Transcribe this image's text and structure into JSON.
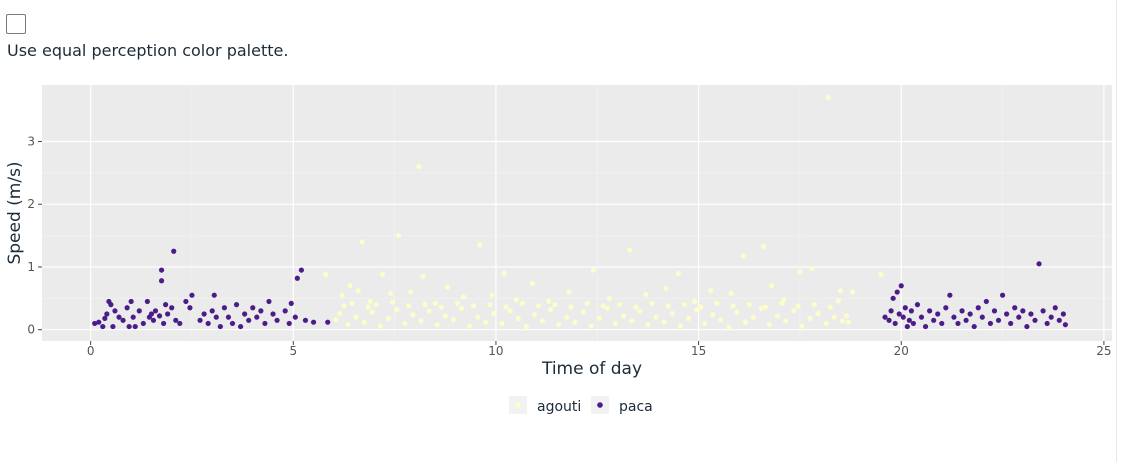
{
  "control": {
    "checked": false,
    "label": "Use equal perception color palette."
  },
  "chart_data": {
    "type": "scatter",
    "title": "",
    "xlabel": "Time of day",
    "ylabel": "Speed (m/s)",
    "xlim": [
      -1.2,
      25.2
    ],
    "ylim": [
      -0.18,
      3.9
    ],
    "xticks": [
      0,
      5,
      10,
      15,
      20,
      25
    ],
    "yticks": [
      0,
      1,
      2,
      3
    ],
    "grid": true,
    "legend": "bottom",
    "colors": {
      "agouti": "#fdfccc",
      "paca": "#4b1c8a",
      "panel": "#ebebeb",
      "grid": "#ffffff"
    },
    "series": [
      {
        "name": "agouti",
        "points": [
          [
            5.8,
            0.88
          ],
          [
            6.2,
            0.55
          ],
          [
            6.4,
            0.7
          ],
          [
            6.6,
            0.62
          ],
          [
            6.7,
            1.4
          ],
          [
            6.9,
            0.45
          ],
          [
            7.2,
            0.88
          ],
          [
            7.4,
            0.58
          ],
          [
            7.6,
            1.5
          ],
          [
            7.9,
            0.6
          ],
          [
            8.1,
            2.6
          ],
          [
            8.2,
            0.85
          ],
          [
            8.5,
            0.42
          ],
          [
            8.8,
            0.68
          ],
          [
            9.2,
            0.52
          ],
          [
            9.6,
            1.35
          ],
          [
            9.9,
            0.55
          ],
          [
            10.2,
            0.9
          ],
          [
            10.5,
            0.48
          ],
          [
            10.9,
            0.74
          ],
          [
            11.3,
            0.45
          ],
          [
            11.8,
            0.6
          ],
          [
            12.4,
            0.95
          ],
          [
            12.8,
            0.5
          ],
          [
            13.3,
            1.27
          ],
          [
            13.7,
            0.56
          ],
          [
            14.2,
            0.66
          ],
          [
            14.5,
            0.9
          ],
          [
            14.9,
            0.45
          ],
          [
            15.3,
            0.62
          ],
          [
            15.8,
            0.58
          ],
          [
            16.1,
            1.18
          ],
          [
            16.6,
            1.33
          ],
          [
            16.8,
            0.7
          ],
          [
            17.1,
            0.48
          ],
          [
            17.5,
            0.92
          ],
          [
            17.8,
            0.98
          ],
          [
            18.2,
            3.7
          ],
          [
            18.5,
            0.62
          ],
          [
            18.8,
            0.6
          ],
          [
            19.5,
            0.88
          ],
          [
            6.35,
            0.08
          ],
          [
            6.55,
            0.2
          ],
          [
            6.75,
            0.12
          ],
          [
            6.95,
            0.28
          ],
          [
            7.15,
            0.06
          ],
          [
            7.35,
            0.18
          ],
          [
            7.55,
            0.32
          ],
          [
            7.75,
            0.1
          ],
          [
            7.95,
            0.24
          ],
          [
            8.15,
            0.14
          ],
          [
            8.35,
            0.3
          ],
          [
            8.55,
            0.08
          ],
          [
            8.75,
            0.22
          ],
          [
            8.95,
            0.16
          ],
          [
            9.15,
            0.34
          ],
          [
            9.35,
            0.06
          ],
          [
            9.55,
            0.2
          ],
          [
            9.75,
            0.12
          ],
          [
            9.95,
            0.26
          ],
          [
            10.15,
            0.1
          ],
          [
            10.35,
            0.3
          ],
          [
            10.55,
            0.18
          ],
          [
            10.75,
            0.05
          ],
          [
            10.95,
            0.24
          ],
          [
            11.15,
            0.14
          ],
          [
            11.35,
            0.32
          ],
          [
            11.55,
            0.08
          ],
          [
            11.75,
            0.2
          ],
          [
            11.95,
            0.12
          ],
          [
            12.15,
            0.28
          ],
          [
            12.35,
            0.06
          ],
          [
            12.55,
            0.18
          ],
          [
            12.75,
            0.34
          ],
          [
            12.95,
            0.1
          ],
          [
            13.15,
            0.22
          ],
          [
            13.35,
            0.14
          ],
          [
            13.55,
            0.3
          ],
          [
            13.75,
            0.08
          ],
          [
            13.95,
            0.2
          ],
          [
            14.15,
            0.12
          ],
          [
            14.35,
            0.26
          ],
          [
            14.55,
            0.06
          ],
          [
            14.75,
            0.18
          ],
          [
            14.95,
            0.32
          ],
          [
            15.15,
            0.1
          ],
          [
            15.35,
            0.24
          ],
          [
            15.55,
            0.16
          ],
          [
            15.75,
            0.04
          ],
          [
            15.95,
            0.28
          ],
          [
            16.15,
            0.12
          ],
          [
            16.35,
            0.2
          ],
          [
            16.55,
            0.34
          ],
          [
            16.75,
            0.08
          ],
          [
            16.95,
            0.22
          ],
          [
            17.15,
            0.14
          ],
          [
            17.35,
            0.3
          ],
          [
            17.55,
            0.06
          ],
          [
            17.75,
            0.18
          ],
          [
            17.95,
            0.26
          ],
          [
            18.15,
            0.1
          ],
          [
            18.35,
            0.2
          ],
          [
            18.55,
            0.14
          ],
          [
            6.25,
            0.38
          ],
          [
            6.45,
            0.42
          ],
          [
            6.85,
            0.36
          ],
          [
            7.05,
            0.4
          ],
          [
            7.45,
            0.44
          ],
          [
            7.85,
            0.38
          ],
          [
            8.25,
            0.4
          ],
          [
            8.65,
            0.36
          ],
          [
            9.05,
            0.42
          ],
          [
            9.45,
            0.38
          ],
          [
            9.85,
            0.4
          ],
          [
            10.25,
            0.36
          ],
          [
            10.65,
            0.42
          ],
          [
            11.05,
            0.38
          ],
          [
            11.45,
            0.4
          ],
          [
            11.85,
            0.36
          ],
          [
            12.25,
            0.42
          ],
          [
            12.65,
            0.38
          ],
          [
            13.05,
            0.4
          ],
          [
            13.45,
            0.36
          ],
          [
            13.85,
            0.42
          ],
          [
            14.25,
            0.38
          ],
          [
            14.65,
            0.4
          ],
          [
            15.05,
            0.36
          ],
          [
            15.45,
            0.42
          ],
          [
            15.85,
            0.38
          ],
          [
            16.25,
            0.4
          ],
          [
            16.65,
            0.36
          ],
          [
            17.05,
            0.42
          ],
          [
            17.45,
            0.38
          ],
          [
            17.85,
            0.4
          ],
          [
            18.25,
            0.36
          ],
          [
            18.45,
            0.46
          ],
          [
            6.05,
            0.16
          ],
          [
            6.15,
            0.26
          ],
          [
            18.65,
            0.22
          ],
          [
            18.7,
            0.12
          ]
        ]
      },
      {
        "name": "paca",
        "points": [
          [
            0.1,
            0.1
          ],
          [
            0.2,
            0.12
          ],
          [
            0.3,
            0.05
          ],
          [
            0.35,
            0.18
          ],
          [
            0.4,
            0.25
          ],
          [
            0.45,
            0.45
          ],
          [
            0.5,
            0.4
          ],
          [
            0.55,
            0.05
          ],
          [
            0.6,
            0.3
          ],
          [
            0.7,
            0.2
          ],
          [
            0.8,
            0.15
          ],
          [
            0.9,
            0.35
          ],
          [
            0.95,
            0.05
          ],
          [
            1.0,
            0.45
          ],
          [
            1.05,
            0.2
          ],
          [
            1.1,
            0.05
          ],
          [
            1.2,
            0.3
          ],
          [
            1.3,
            0.1
          ],
          [
            1.4,
            0.45
          ],
          [
            1.45,
            0.2
          ],
          [
            1.5,
            0.25
          ],
          [
            1.55,
            0.15
          ],
          [
            1.6,
            0.3
          ],
          [
            1.7,
            0.22
          ],
          [
            1.75,
            0.78
          ],
          [
            1.75,
            0.95
          ],
          [
            1.8,
            0.1
          ],
          [
            1.85,
            0.4
          ],
          [
            1.9,
            0.25
          ],
          [
            2.0,
            0.35
          ],
          [
            2.05,
            1.25
          ],
          [
            2.1,
            0.15
          ],
          [
            2.2,
            0.1
          ],
          [
            2.35,
            0.45
          ],
          [
            2.45,
            0.35
          ],
          [
            2.5,
            0.55
          ],
          [
            2.7,
            0.15
          ],
          [
            2.8,
            0.25
          ],
          [
            2.9,
            0.1
          ],
          [
            3.0,
            0.3
          ],
          [
            3.05,
            0.55
          ],
          [
            3.1,
            0.2
          ],
          [
            3.2,
            0.05
          ],
          [
            3.3,
            0.35
          ],
          [
            3.4,
            0.2
          ],
          [
            3.5,
            0.1
          ],
          [
            3.6,
            0.4
          ],
          [
            3.7,
            0.05
          ],
          [
            3.8,
            0.25
          ],
          [
            3.9,
            0.15
          ],
          [
            4.0,
            0.35
          ],
          [
            4.1,
            0.2
          ],
          [
            4.2,
            0.3
          ],
          [
            4.3,
            0.1
          ],
          [
            4.4,
            0.45
          ],
          [
            4.5,
            0.25
          ],
          [
            4.6,
            0.15
          ],
          [
            4.8,
            0.3
          ],
          [
            4.9,
            0.1
          ],
          [
            4.95,
            0.42
          ],
          [
            5.05,
            0.2
          ],
          [
            5.1,
            0.82
          ],
          [
            5.2,
            0.95
          ],
          [
            5.3,
            0.15
          ],
          [
            5.5,
            0.12
          ],
          [
            5.85,
            0.12
          ],
          [
            19.6,
            0.2
          ],
          [
            19.7,
            0.15
          ],
          [
            19.75,
            0.3
          ],
          [
            19.8,
            0.5
          ],
          [
            19.85,
            0.1
          ],
          [
            19.9,
            0.6
          ],
          [
            19.95,
            0.25
          ],
          [
            20.0,
            0.7
          ],
          [
            20.05,
            0.2
          ],
          [
            20.1,
            0.35
          ],
          [
            20.15,
            0.05
          ],
          [
            20.2,
            0.15
          ],
          [
            20.25,
            0.3
          ],
          [
            20.3,
            0.1
          ],
          [
            20.4,
            0.4
          ],
          [
            20.5,
            0.2
          ],
          [
            20.6,
            0.05
          ],
          [
            20.7,
            0.3
          ],
          [
            20.8,
            0.15
          ],
          [
            20.9,
            0.25
          ],
          [
            21.0,
            0.1
          ],
          [
            21.1,
            0.35
          ],
          [
            21.2,
            0.55
          ],
          [
            21.3,
            0.2
          ],
          [
            21.4,
            0.1
          ],
          [
            21.5,
            0.3
          ],
          [
            21.6,
            0.15
          ],
          [
            21.7,
            0.25
          ],
          [
            21.8,
            0.05
          ],
          [
            21.9,
            0.35
          ],
          [
            22.0,
            0.2
          ],
          [
            22.1,
            0.45
          ],
          [
            22.2,
            0.1
          ],
          [
            22.3,
            0.3
          ],
          [
            22.4,
            0.15
          ],
          [
            22.5,
            0.55
          ],
          [
            22.6,
            0.25
          ],
          [
            22.7,
            0.1
          ],
          [
            22.8,
            0.35
          ],
          [
            22.9,
            0.2
          ],
          [
            23.0,
            0.3
          ],
          [
            23.1,
            0.05
          ],
          [
            23.2,
            0.25
          ],
          [
            23.3,
            0.15
          ],
          [
            23.4,
            1.05
          ],
          [
            23.5,
            0.3
          ],
          [
            23.6,
            0.1
          ],
          [
            23.7,
            0.2
          ],
          [
            23.8,
            0.35
          ],
          [
            23.9,
            0.15
          ],
          [
            24.0,
            0.25
          ],
          [
            24.05,
            0.08
          ]
        ]
      }
    ]
  }
}
